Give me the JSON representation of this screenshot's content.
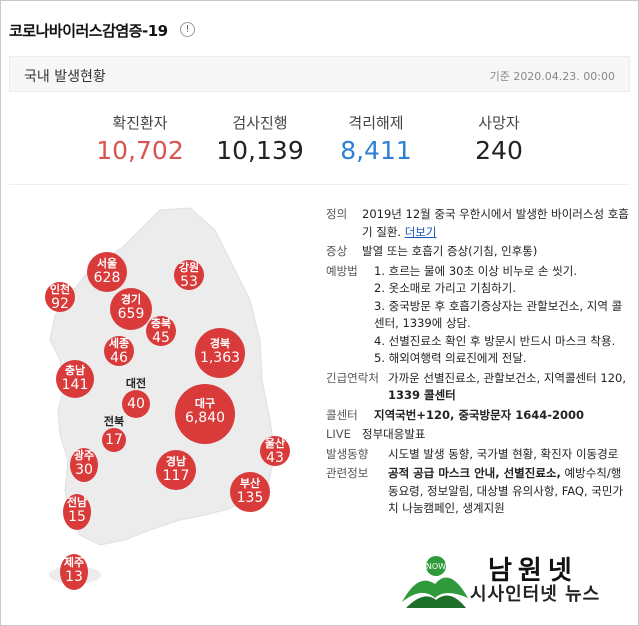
{
  "header": {
    "title": "코로나바이러스감염증-19",
    "info_icon": "!"
  },
  "subbar": {
    "label": "국내 발생현황",
    "date": "기준 2020.04.23. 00:00"
  },
  "stats": [
    {
      "label": "확진환자",
      "value": "10,702",
      "color": "#d9534f"
    },
    {
      "label": "검사진행",
      "value": "10,139",
      "color": "#222222"
    },
    {
      "label": "격리해제",
      "value": "8,411",
      "color": "#2e7fd6"
    },
    {
      "label": "사망자",
      "value": "240",
      "color": "#222222"
    }
  ],
  "map": {
    "regions": [
      {
        "name": "서울",
        "count": "628"
      },
      {
        "name": "강원",
        "count": "53"
      },
      {
        "name": "인천",
        "count": "92"
      },
      {
        "name": "경기",
        "count": "659"
      },
      {
        "name": "충북",
        "count": "45"
      },
      {
        "name": "세종",
        "count": "46"
      },
      {
        "name": "경북",
        "count": "1,363"
      },
      {
        "name": "충남",
        "count": "141"
      },
      {
        "name": "대전",
        "count": "40"
      },
      {
        "name": "대구",
        "count": "6,840"
      },
      {
        "name": "전북",
        "count": "17"
      },
      {
        "name": "울산",
        "count": "43"
      },
      {
        "name": "광주",
        "count": "30"
      },
      {
        "name": "경남",
        "count": "117"
      },
      {
        "name": "부산",
        "count": "135"
      },
      {
        "name": "전남",
        "count": "15"
      },
      {
        "name": "제주",
        "count": "13"
      }
    ]
  },
  "info": {
    "definition_label": "정의",
    "definition_text": "2019년 12월 중국 우한시에서 발생한 바이러스성 호흡기 질환.",
    "definition_more": "더보기",
    "symptom_label": "증상",
    "symptom_text": "발열 또는 호흡기 증상(기침, 인후통)",
    "prevention_label": "예방법",
    "prevention_items": [
      "1. 흐르는 물에 30초 이상 비누로 손 씻기.",
      "2. 옷소매로 가리고 기침하기.",
      "3. 중국방문 후 호흡기증상자는 관할보건소, 지역 콜센터, 1339에 상담.",
      "4. 선별진료소 확인 후 방문시 반드시 마스크 착용.",
      "5. 해외여행력 의료진에게 전달."
    ],
    "emergency_label": "긴급연락처",
    "emergency_text": "가까운 선별진료소, 관할보건소, 지역콜센터 120,",
    "emergency_bold": "1339 콜센터",
    "callcenter_label": "콜센터",
    "callcenter_text": "지역국번+120, 중국방문자 1644-2000",
    "live_label": "LIVE",
    "live_text": "정부대응발표",
    "status_label": "발생동향",
    "status_text": "시도별 발생 동향, 국가별 현황, 확진자 이동경로",
    "related_label": "관련정보",
    "related_bold": "공적 공급 마스크 안내, 선별진료소,",
    "related_text": "예방수칙/행동요령, 정보알림, 대상별 유의사항, FAQ, 국민가치 나눔캠페인, 생계지원"
  },
  "watermark": {
    "name": "남원넷",
    "sub": "시사인터넷 뉴스",
    "badge": "NOW"
  }
}
